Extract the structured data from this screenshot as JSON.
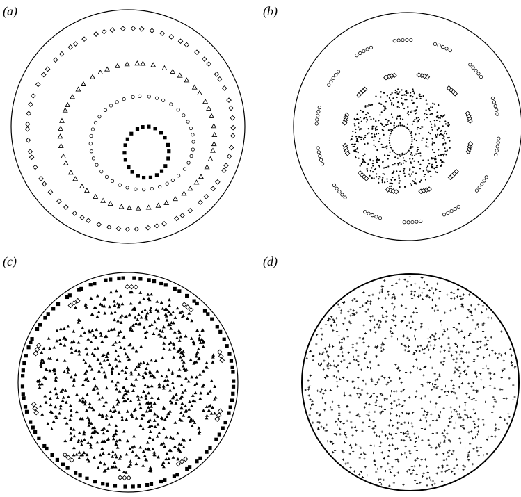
{
  "chart_data": [
    {
      "type": "scatter",
      "label": "(a)",
      "domain": "unit-disk",
      "xlim": [
        -1,
        1
      ],
      "ylim": [
        -1,
        1
      ],
      "boundary": "circle",
      "series": [
        {
          "marker": "diamond-open",
          "pattern": "ring",
          "center": [
            0.02,
            -0.02
          ],
          "rx": 0.88,
          "ry": 0.86,
          "count": 66
        },
        {
          "marker": "triangle-open",
          "pattern": "ring",
          "center": [
            0.08,
            -0.08
          ],
          "rx": 0.66,
          "ry": 0.62,
          "count": 52
        },
        {
          "marker": "circle-open",
          "pattern": "ring",
          "center": [
            0.12,
            -0.14
          ],
          "rx": 0.44,
          "ry": 0.4,
          "count": 40
        },
        {
          "marker": "square-filled",
          "pattern": "ring",
          "center": [
            0.16,
            -0.22
          ],
          "rx": 0.19,
          "ry": 0.22,
          "count": 22
        }
      ]
    },
    {
      "type": "scatter",
      "label": "(b)",
      "domain": "unit-disk",
      "xlim": [
        -1,
        1
      ],
      "ylim": [
        -1,
        1
      ],
      "boundary": "circle",
      "series": [
        {
          "marker": "circle-open",
          "pattern": "island-chain",
          "center": [
            0.0,
            -0.04
          ],
          "rx": 0.8,
          "ry": 0.8,
          "islands": 14,
          "per_island": 5
        },
        {
          "marker": "diamond-open",
          "pattern": "island-chain",
          "center": [
            0.0,
            -0.06
          ],
          "rx": 0.56,
          "ry": 0.52,
          "islands": 12,
          "per_island": 4
        },
        {
          "marker": "dot",
          "pattern": "chaotic-band",
          "center": [
            -0.06,
            -0.1
          ],
          "r_min": 0.1,
          "r_max": 0.44,
          "count": 520
        },
        {
          "marker": "dot",
          "pattern": "ring",
          "center": [
            -0.06,
            -0.12
          ],
          "rx": 0.1,
          "ry": 0.13,
          "count": 40
        }
      ]
    },
    {
      "type": "scatter",
      "label": "(c)",
      "domain": "unit-disk",
      "xlim": [
        -1,
        1
      ],
      "ylim": [
        -1,
        1
      ],
      "boundary": "circle",
      "series": [
        {
          "marker": "square-filled",
          "pattern": "ring",
          "center": [
            0.0,
            0.0
          ],
          "rx": 0.96,
          "ry": 0.95,
          "count": 92
        },
        {
          "marker": "diamond-open",
          "pattern": "island-chain",
          "center": [
            0.0,
            0.0
          ],
          "rx": 0.88,
          "ry": 0.87,
          "islands": 10,
          "per_island": 3
        },
        {
          "marker": "triangle-filled",
          "pattern": "chaotic-disk",
          "center": [
            0.0,
            0.0
          ],
          "r_max": 0.84,
          "count": 760
        }
      ]
    },
    {
      "type": "scatter",
      "label": "(d)",
      "domain": "unit-disk",
      "xlim": [
        -1,
        1
      ],
      "ylim": [
        -1,
        1
      ],
      "boundary": "circle",
      "series": [
        {
          "marker": "plus",
          "pattern": "chaotic-disk",
          "center": [
            0.0,
            0.0
          ],
          "r_max": 0.98,
          "count": 980
        }
      ]
    }
  ]
}
